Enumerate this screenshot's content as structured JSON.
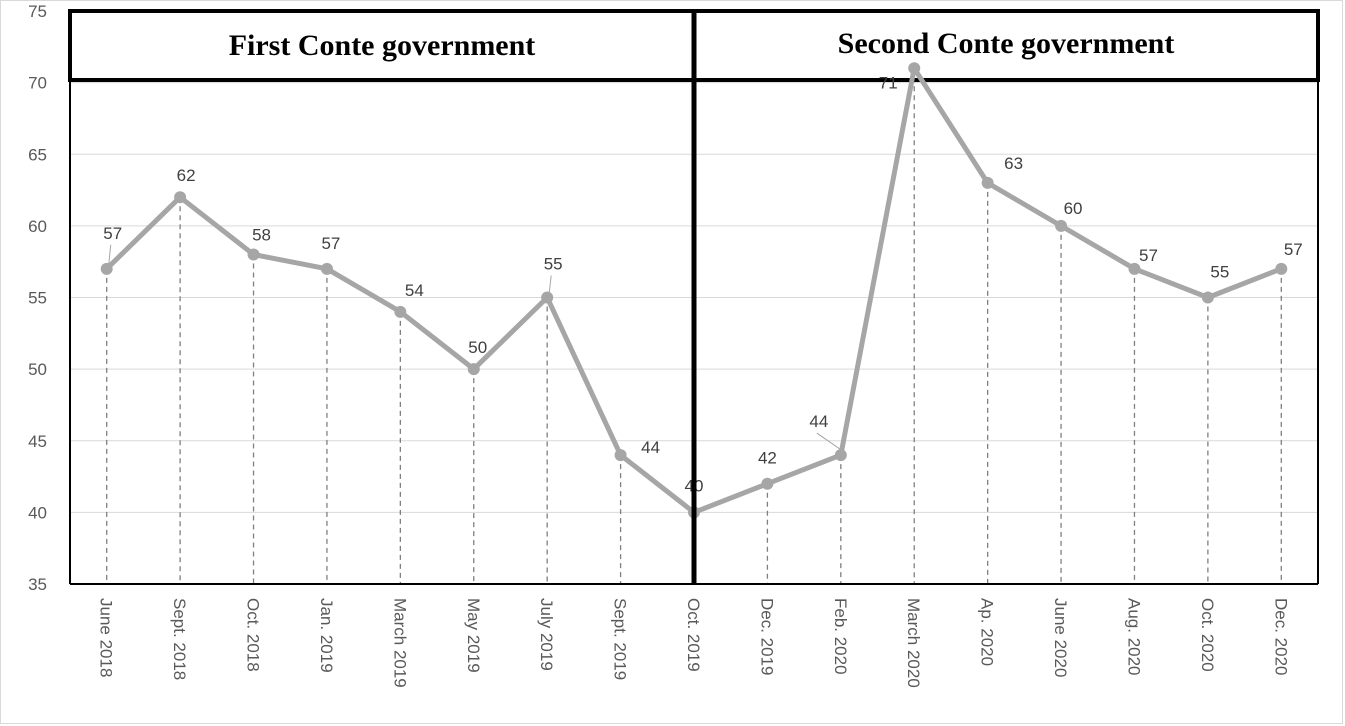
{
  "chart_data": {
    "type": "line",
    "categories": [
      "June 2018",
      "Sept. 2018",
      "Oct. 2018",
      "Jan. 2019",
      "March 2019",
      "May 2019",
      "July 2019",
      "Sept. 2019",
      "Oct. 2019",
      "Dec. 2019",
      "Feb. 2020",
      "March 2020",
      "Ap. 2020",
      "June 2020",
      "Aug. 2020",
      "Oct. 2020",
      "Dec. 2020"
    ],
    "series": [
      {
        "values": [
          57,
          62,
          58,
          57,
          54,
          50,
          55,
          44,
          40,
          42,
          44,
          71,
          63,
          60,
          57,
          55,
          57
        ]
      }
    ],
    "ylim": [
      35,
      75
    ],
    "yticks": [
      35,
      40,
      45,
      50,
      55,
      60,
      65,
      70,
      75
    ],
    "grid": true,
    "panels": [
      {
        "title": "First Conte government"
      },
      {
        "title": "Second Conte government"
      }
    ],
    "colors": {
      "line": "#a6a6a6",
      "grid": "#d9d9d9",
      "dashes": "#7f7f7f",
      "divider": "#000000"
    }
  }
}
